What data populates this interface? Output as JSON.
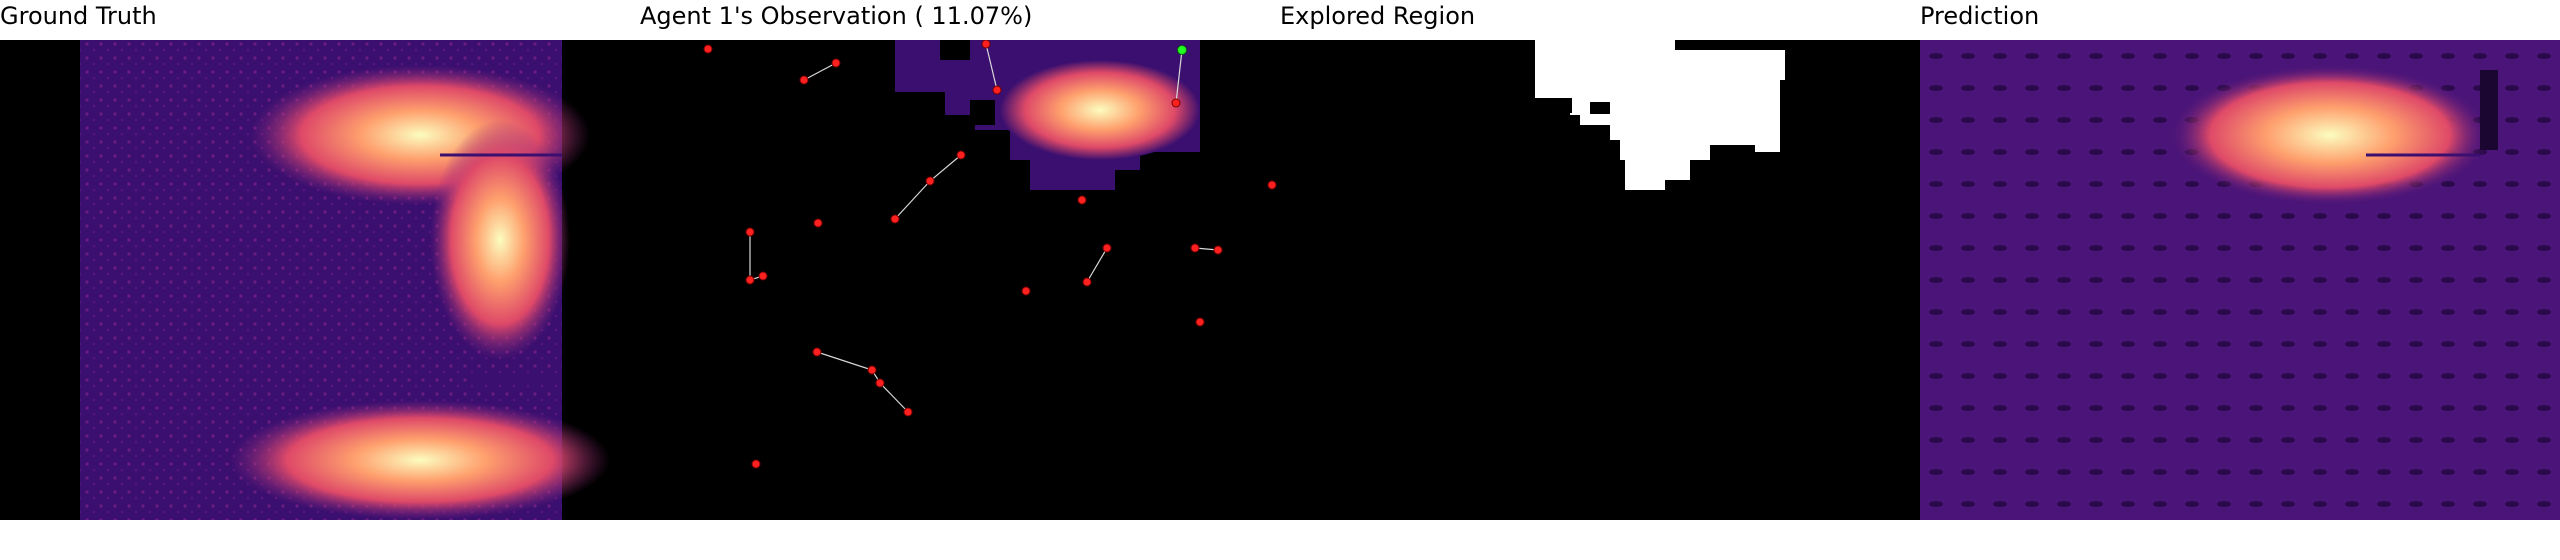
{
  "panels": [
    {
      "title": "Ground Truth"
    },
    {
      "title": "Agent 1's Observation ( 11.07%)"
    },
    {
      "title": "Explored Region"
    },
    {
      "title": "Prediction"
    }
  ],
  "colors": {
    "background_black": "#000000",
    "heat_low": "#3b0f6f",
    "heat_mid": "#8c2981",
    "heat_warm": "#de4968",
    "heat_hot": "#fe9f6d",
    "heat_peak": "#fcfdbf",
    "agent_marker": "#ff2020",
    "agent_start": "#22ff22",
    "path_line": "#d8d8d8",
    "explored": "#ffffff"
  }
}
